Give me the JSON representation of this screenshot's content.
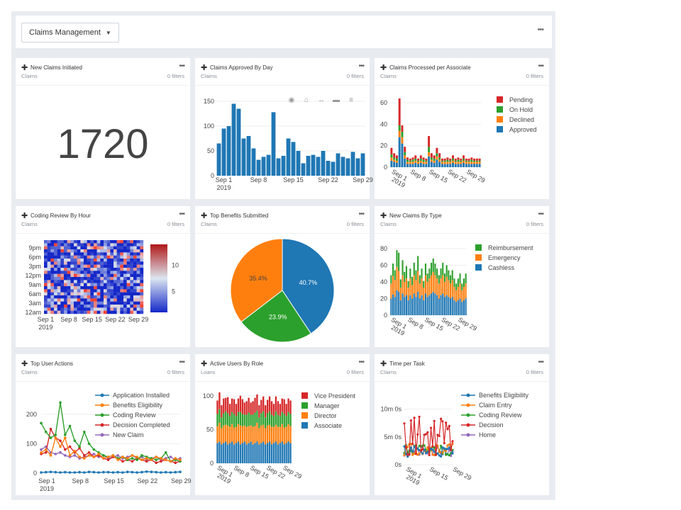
{
  "header": {
    "dashboard_select": "Claims Management",
    "more": "•••"
  },
  "cards": [
    {
      "title": "New Claims Initiated",
      "source": "Claims",
      "filters": "0 filters",
      "kind": "number",
      "value": "1720"
    },
    {
      "title": "Claims Approved By Day",
      "source": "Claims",
      "filters": "0 filters",
      "kind": "bar"
    },
    {
      "title": "Claims Processed per Associate",
      "source": "Claims",
      "filters": "0 filters",
      "kind": "stacked_bar_small"
    },
    {
      "title": "Coding Review By Hour",
      "source": "Claims",
      "filters": "0 filters",
      "kind": "heatmap"
    },
    {
      "title": "Top Benefits Submitted",
      "source": "Claims",
      "filters": "0 filters",
      "kind": "pie"
    },
    {
      "title": "New Claims By Type",
      "source": "Claims",
      "filters": "0 filters",
      "kind": "stacked_bar"
    },
    {
      "title": "Top User Actions",
      "source": "Claims",
      "filters": "0 filters",
      "kind": "line"
    },
    {
      "title": "Active Users By Role",
      "source": "Loans",
      "filters": "0 filters",
      "kind": "stacked_pct"
    },
    {
      "title": "Time per Task",
      "source": "Claims",
      "filters": "0 filters",
      "kind": "line_time"
    }
  ],
  "colors": {
    "blue": "#1f77b4",
    "orange": "#ff7f0e",
    "green": "#2ca02c",
    "red": "#d62728",
    "purple": "#9467bd"
  },
  "icons": {
    "move": "four-arrow-move-icon",
    "more": "ellipsis-icon",
    "camera": "camera-icon",
    "home": "home-icon",
    "pan": "pan-icon",
    "zoom": "zoom-icon",
    "bars": "bars-icon"
  },
  "chart_data": [
    {
      "type": "table",
      "title": "New Claims Initiated",
      "values": [
        1720
      ]
    },
    {
      "type": "bar",
      "title": "Claims Approved By Day",
      "x": [
        "2019-08-31",
        "2019-09-01",
        "2019-09-02",
        "2019-09-03",
        "2019-09-04",
        "2019-09-05",
        "2019-09-06",
        "2019-09-07",
        "2019-09-08",
        "2019-09-09",
        "2019-09-10",
        "2019-09-11",
        "2019-09-12",
        "2019-09-13",
        "2019-09-14",
        "2019-09-15",
        "2019-09-16",
        "2019-09-17",
        "2019-09-18",
        "2019-09-19",
        "2019-09-20",
        "2019-09-21",
        "2019-09-22",
        "2019-09-23",
        "2019-09-24",
        "2019-09-25",
        "2019-09-26",
        "2019-09-27",
        "2019-09-28",
        "2019-09-29"
      ],
      "values": [
        65,
        95,
        100,
        145,
        135,
        75,
        80,
        55,
        32,
        38,
        42,
        128,
        35,
        40,
        75,
        68,
        50,
        25,
        40,
        42,
        38,
        50,
        30,
        28,
        45,
        38,
        35,
        48,
        35,
        45
      ],
      "x_ticks": [
        "Sep 1\n2019",
        "Sep 8",
        "Sep 15",
        "Sep 22",
        "Sep 29"
      ],
      "y_ticks": [
        0,
        50,
        100,
        150
      ],
      "ylim": [
        0,
        160
      ]
    },
    {
      "type": "bar",
      "title": "Claims Processed per Associate",
      "stacked": true,
      "x_ticks": [
        "Sep 1\n2019",
        "Sep 8",
        "Sep 15",
        "Sep 22",
        "Sep 29"
      ],
      "y_ticks": [
        0,
        20,
        40,
        60
      ],
      "ylim": [
        0,
        66
      ],
      "series": [
        {
          "name": "Pending",
          "values": [
            6,
            4,
            3,
            25,
            6,
            5,
            2,
            2,
            2,
            3,
            2,
            3,
            2,
            2,
            10,
            4,
            3,
            5,
            4,
            2,
            2,
            2,
            2,
            3,
            2,
            2,
            2,
            3,
            2,
            2,
            2,
            2,
            2,
            2
          ]
        },
        {
          "name": "On Hold",
          "values": [
            3,
            2,
            2,
            5,
            5,
            3,
            2,
            1,
            2,
            2,
            1,
            2,
            2,
            1,
            5,
            2,
            2,
            3,
            2,
            1,
            1,
            2,
            1,
            2,
            1,
            2,
            1,
            2,
            1,
            1,
            2,
            1,
            1,
            1
          ]
        },
        {
          "name": "Declined",
          "values": [
            3,
            2,
            2,
            6,
            6,
            3,
            2,
            2,
            2,
            2,
            2,
            2,
            2,
            2,
            4,
            2,
            2,
            3,
            2,
            2,
            2,
            2,
            2,
            2,
            2,
            2,
            2,
            2,
            2,
            2,
            2,
            2,
            2,
            2
          ]
        },
        {
          "name": "Approved",
          "values": [
            6,
            5,
            4,
            28,
            22,
            8,
            3,
            3,
            3,
            4,
            3,
            4,
            3,
            3,
            10,
            5,
            4,
            7,
            5,
            3,
            3,
            3,
            3,
            4,
            3,
            3,
            3,
            4,
            3,
            3,
            3,
            3,
            3,
            3
          ]
        }
      ]
    },
    {
      "type": "heatmap",
      "title": "Coding Review By Hour",
      "x_ticks": [
        "Sep 1\n2019",
        "Sep 8",
        "Sep 15",
        "Sep 22",
        "Sep 29"
      ],
      "y_ticks": [
        "12am",
        "3am",
        "6am",
        "9am",
        "12pm",
        "3pm",
        "6pm",
        "9pm"
      ],
      "colorbar": [
        5,
        10
      ],
      "zlim": [
        1,
        14
      ]
    },
    {
      "type": "pie",
      "title": "Top Benefits Submitted",
      "labels": [
        "40.7%",
        "23.9%",
        "35.4%"
      ],
      "values": [
        40.7,
        23.9,
        35.4
      ]
    },
    {
      "type": "bar",
      "title": "New Claims By Type",
      "stacked": true,
      "x_ticks": [
        "Sep 1\n2019",
        "Sep 8",
        "Sep 15",
        "Sep 22",
        "Sep 29"
      ],
      "y_ticks": [
        0,
        20,
        40,
        60,
        80
      ],
      "ylim": [
        0,
        85
      ],
      "series": [
        {
          "name": "Reimbursement",
          "values": [
            10,
            15,
            12,
            20,
            22,
            10,
            18,
            12,
            15,
            8,
            12,
            10,
            15,
            12,
            18,
            10,
            12,
            8,
            14,
            10,
            12,
            15,
            16,
            14,
            12,
            10,
            12,
            15,
            10,
            14,
            12,
            10,
            12,
            10,
            8,
            10,
            12,
            8,
            10,
            12
          ]
        },
        {
          "name": "Emergency",
          "values": [
            18,
            22,
            20,
            28,
            25,
            15,
            22,
            18,
            20,
            15,
            20,
            16,
            22,
            20,
            25,
            18,
            20,
            15,
            22,
            18,
            20,
            22,
            24,
            22,
            20,
            18,
            20,
            22,
            18,
            22,
            20,
            18,
            20,
            16,
            14,
            16,
            18,
            14,
            16,
            18
          ]
        },
        {
          "name": "Cashless",
          "values": [
            20,
            25,
            22,
            30,
            28,
            18,
            26,
            22,
            24,
            18,
            24,
            20,
            26,
            22,
            28,
            20,
            24,
            18,
            26,
            22,
            24,
            26,
            28,
            26,
            24,
            20,
            24,
            26,
            22,
            24,
            22,
            20,
            22,
            18,
            16,
            18,
            20,
            16,
            18,
            20
          ]
        }
      ]
    },
    {
      "type": "line",
      "title": "Top User Actions",
      "x_ticks": [
        "Sep 1\n2019",
        "Sep 8",
        "Sep 15",
        "Sep 22",
        "Sep 29"
      ],
      "y_ticks": [
        0,
        100,
        200
      ],
      "ylim": [
        -10,
        260
      ],
      "series": [
        {
          "name": "Application Installed",
          "values": [
            2,
            3,
            4,
            3,
            2,
            3,
            2,
            2,
            3,
            2,
            4,
            3,
            2,
            3,
            3,
            2,
            3,
            2,
            4,
            3,
            2,
            3,
            5,
            4,
            3,
            2,
            3,
            2,
            3,
            4
          ]
        },
        {
          "name": "Benefits Eligibility",
          "values": [
            70,
            80,
            60,
            120,
            90,
            120,
            60,
            75,
            55,
            50,
            60,
            55,
            65,
            50,
            55,
            60,
            45,
            55,
            50,
            60,
            55,
            45,
            50,
            45,
            55,
            50,
            45,
            40,
            50,
            45
          ]
        },
        {
          "name": "Coding Review",
          "values": [
            170,
            140,
            120,
            130,
            240,
            130,
            160,
            110,
            90,
            140,
            100,
            80,
            70,
            60,
            55,
            60,
            50,
            55,
            45,
            50,
            45,
            60,
            55,
            50,
            45,
            50,
            70,
            40,
            45,
            40
          ]
        },
        {
          "name": "Decision Completed",
          "values": [
            65,
            70,
            150,
            120,
            110,
            80,
            90,
            70,
            85,
            60,
            70,
            55,
            60,
            50,
            45,
            55,
            50,
            40,
            45,
            40,
            50,
            45,
            40,
            45,
            35,
            40,
            45,
            40,
            35,
            40
          ]
        },
        {
          "name": "New Claim",
          "values": [
            80,
            90,
            70,
            65,
            70,
            60,
            55,
            60,
            50,
            55,
            60,
            65,
            55,
            60,
            50,
            55,
            60,
            50,
            55,
            60,
            50,
            55,
            45,
            50,
            55,
            45,
            50,
            55,
            45,
            50
          ]
        }
      ]
    },
    {
      "type": "bar",
      "title": "Active Users By Role",
      "stacked": true,
      "x_ticks": [
        "Sep 1\n2019",
        "Sep 8",
        "Sep 15",
        "Sep 22",
        "Sep 29"
      ],
      "y_ticks": [
        0,
        50,
        100
      ],
      "ylim": [
        0,
        105
      ],
      "series": [
        {
          "name": "Vice President",
          "values": [
            20,
            25,
            18,
            22,
            20,
            24,
            18,
            20,
            22,
            18,
            20,
            24,
            22,
            18,
            20,
            22,
            18,
            20,
            22,
            24,
            18,
            20,
            22,
            18,
            20,
            22,
            20,
            18,
            22,
            20,
            18,
            20,
            22,
            18,
            20,
            20
          ]
        },
        {
          "name": "Manager",
          "values": [
            18,
            20,
            16,
            18,
            20,
            18,
            16,
            18,
            20,
            16,
            18,
            20,
            18,
            16,
            18,
            20,
            16,
            18,
            20,
            18,
            16,
            18,
            20,
            16,
            18,
            20,
            18,
            16,
            20,
            18,
            16,
            18,
            20,
            16,
            18,
            18
          ]
        },
        {
          "name": "Director",
          "values": [
            25,
            28,
            24,
            26,
            25,
            28,
            24,
            26,
            25,
            24,
            26,
            28,
            25,
            24,
            26,
            25,
            24,
            26,
            25,
            28,
            24,
            26,
            25,
            24,
            26,
            25,
            26,
            24,
            25,
            26,
            24,
            26,
            25,
            24,
            26,
            25
          ]
        },
        {
          "name": "Associate",
          "values": [
            30,
            32,
            28,
            30,
            32,
            28,
            30,
            32,
            28,
            30,
            32,
            28,
            30,
            32,
            28,
            30,
            32,
            28,
            30,
            32,
            28,
            30,
            32,
            28,
            30,
            32,
            28,
            30,
            32,
            28,
            30,
            32,
            28,
            30,
            32,
            30
          ]
        }
      ]
    },
    {
      "type": "line",
      "title": "Time per Task",
      "x_ticks": [
        "Sep 1\n2019",
        "Sep 15",
        "Sep 29"
      ],
      "y_ticks": [
        "0s",
        "5m 0s",
        "10m 0s"
      ],
      "series": [
        {
          "name": "Benefits Eligibility"
        },
        {
          "name": "Claim Entry"
        },
        {
          "name": "Coding Review"
        },
        {
          "name": "Decision"
        },
        {
          "name": "Home"
        }
      ]
    }
  ]
}
